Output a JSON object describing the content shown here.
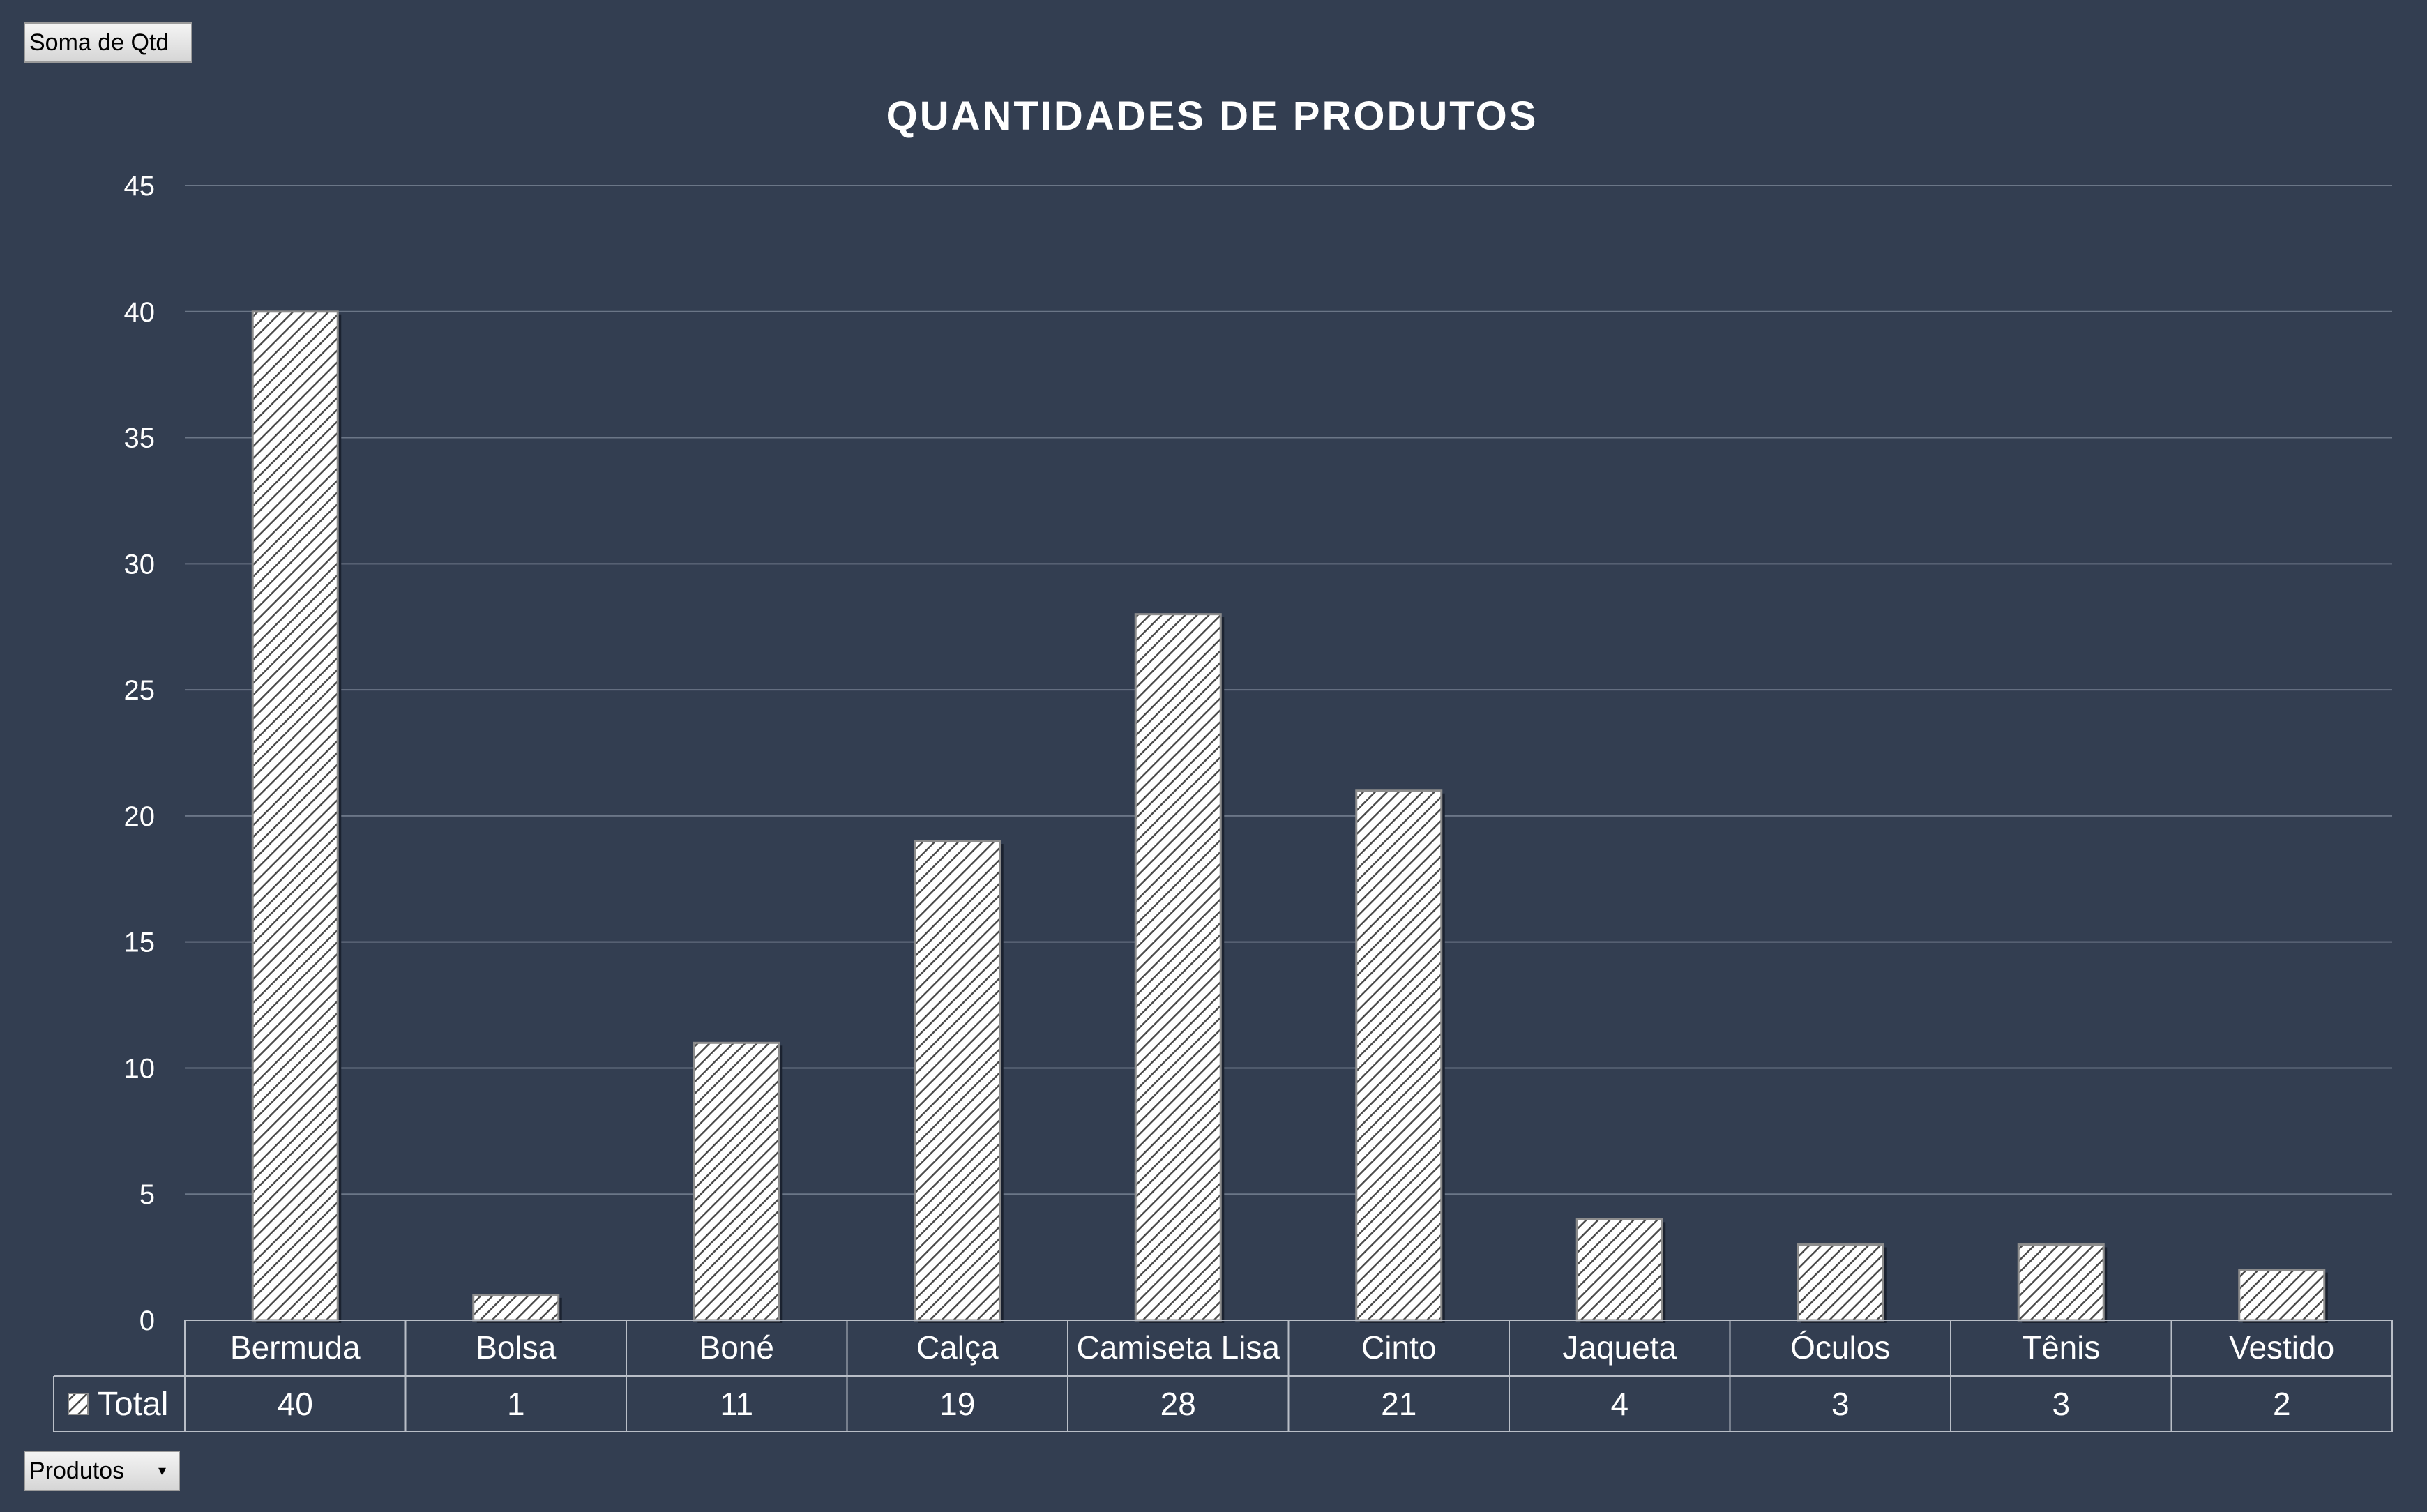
{
  "buttons": {
    "value_field": "Soma de Qtd",
    "axis_field": "Produtos",
    "axis_dropdown_icon": "chevron-down-icon"
  },
  "chart_data": {
    "type": "bar",
    "title": "QUANTIDADES DE PRODUTOS",
    "categories": [
      "Bermuda",
      "Bolsa",
      "Boné",
      "Calça",
      "Camiseta Lisa",
      "Cinto",
      "Jaqueta",
      "Óculos",
      "Tênis",
      "Vestido"
    ],
    "series": [
      {
        "name": "Total",
        "values": [
          40,
          1,
          11,
          19,
          28,
          21,
          4,
          3,
          3,
          2
        ]
      }
    ],
    "ylim": [
      0,
      45
    ],
    "yticks": [
      0,
      5,
      10,
      15,
      20,
      25,
      30,
      35,
      40,
      45
    ],
    "grid": true,
    "data_table": true,
    "bar_fill": "diagonal hatch",
    "colors": {
      "background": "#333e51",
      "text": "#ffffff",
      "grid": "#6b7687",
      "bar_fill": "#ffffff",
      "bar_hatch": "#4a4a4a"
    }
  }
}
